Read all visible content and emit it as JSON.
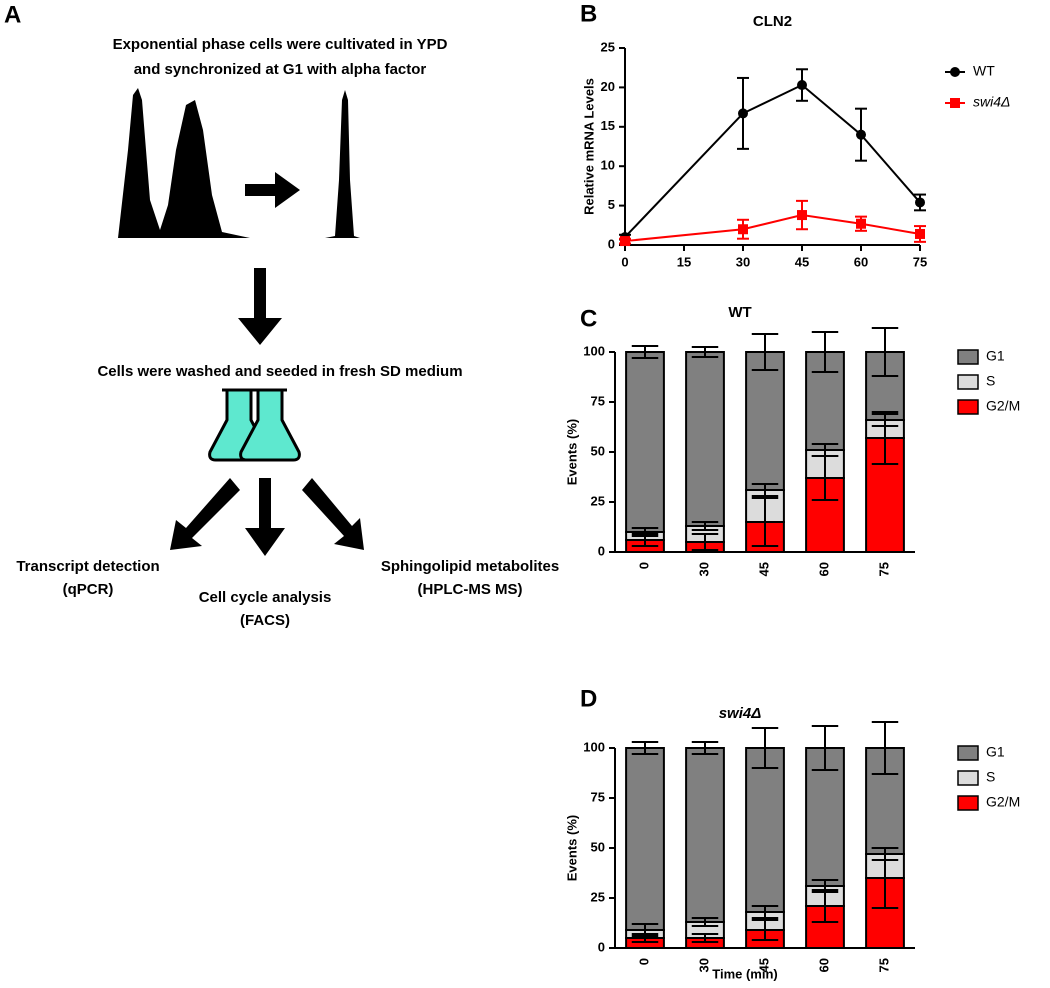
{
  "panel_a": {
    "label": "A",
    "steps": [
      "Exponential phase cells were cultivated in YPD",
      "and synchronized at G1 with alpha factor",
      "Cells were washed and seeded in fresh SD medium"
    ],
    "outputs": [
      {
        "name": "Transcript detection",
        "method": "(qPCR)"
      },
      {
        "name": "Cell cycle analysis",
        "method": "(FACS)"
      },
      {
        "name": "Sphingolipid metabolites",
        "method": "(HPLC-MS MS)"
      }
    ]
  },
  "chart_data": [
    {
      "type": "line",
      "panel": "B",
      "title": "CLN2",
      "y_label": "Relative mRNA Levels",
      "x": [
        0,
        30,
        45,
        60,
        75
      ],
      "xlim": [
        0,
        75
      ],
      "xticks": [
        0,
        15,
        30,
        45,
        60,
        75
      ],
      "ylim": [
        0,
        25
      ],
      "yticks": [
        0,
        5,
        10,
        15,
        20,
        25
      ],
      "legend": "right",
      "series": [
        {
          "name": "WT",
          "color": "#000000",
          "marker": "circle",
          "values": [
            1,
            16.7,
            20.3,
            14,
            5.4
          ],
          "errors": [
            0.3,
            4.5,
            2,
            3.3,
            1
          ]
        },
        {
          "name": "swi4Δ",
          "color": "#ff0000",
          "marker": "square",
          "values": [
            0.5,
            2,
            3.8,
            2.7,
            1.4
          ],
          "errors": [
            0.3,
            1.2,
            1.8,
            0.9,
            1
          ]
        }
      ]
    },
    {
      "type": "bar",
      "stacked": true,
      "panel": "C",
      "title": "WT",
      "y_label": "Events (%)",
      "categories": [
        "0",
        "30",
        "45",
        "60",
        "75"
      ],
      "ylim": [
        0,
        100
      ],
      "yticks": [
        0,
        25,
        50,
        75,
        100
      ],
      "legend": "right",
      "series": [
        {
          "name": "G1",
          "color": "#808080",
          "values": [
            90,
            87,
            69,
            49,
            34
          ],
          "errors": [
            3,
            2.5,
            9,
            10,
            12
          ]
        },
        {
          "name": "S",
          "color": "#dcdcdc",
          "values": [
            4,
            8,
            16,
            14,
            9
          ],
          "errors": [
            2,
            2,
            3,
            3,
            3
          ]
        },
        {
          "name": "G2/M",
          "color": "#ff0000",
          "values": [
            6,
            5,
            15,
            37,
            57
          ],
          "errors": [
            3,
            4,
            12,
            11,
            13
          ]
        }
      ]
    },
    {
      "type": "bar",
      "stacked": true,
      "panel": "D",
      "title": "swi4Δ",
      "y_label": "Events (%)",
      "x_label": "Time (min)",
      "categories": [
        "0",
        "30",
        "45",
        "60",
        "75"
      ],
      "ylim": [
        0,
        100
      ],
      "yticks": [
        0,
        25,
        50,
        75,
        100
      ],
      "legend": "right",
      "series": [
        {
          "name": "G1",
          "color": "#808080",
          "values": [
            91,
            87,
            82,
            69,
            53
          ],
          "errors": [
            3,
            3,
            10,
            11,
            13
          ]
        },
        {
          "name": "S",
          "color": "#dcdcdc",
          "values": [
            4,
            8,
            9,
            10,
            12
          ],
          "errors": [
            3,
            2,
            3,
            3,
            3
          ]
        },
        {
          "name": "G2/M",
          "color": "#ff0000",
          "values": [
            5,
            5,
            9,
            21,
            35
          ],
          "errors": [
            2,
            2,
            5,
            8,
            15
          ]
        }
      ]
    }
  ]
}
